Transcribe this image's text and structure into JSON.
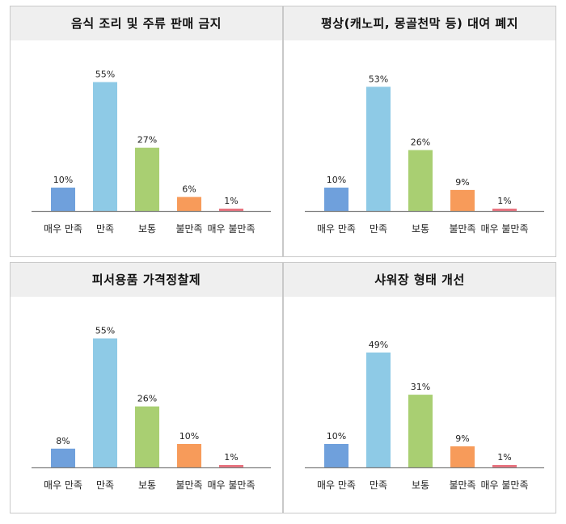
{
  "colors": [
    "#6fa0dc",
    "#8ecae6",
    "#a9cf72",
    "#f79b5a",
    "#e8737f"
  ],
  "chart_data": [
    {
      "type": "bar",
      "title": "음식 조리 및 주류 판매 금지",
      "categories": [
        "매우 만족",
        "만족",
        "보통",
        "불만족",
        "매우 불만족"
      ],
      "values": [
        10,
        55,
        27,
        6,
        1
      ],
      "value_labels": [
        "10%",
        "55%",
        "27%",
        "6%",
        "1%"
      ],
      "ylim": [
        0,
        60
      ]
    },
    {
      "type": "bar",
      "title": "평상(캐노피, 몽골천막 등) 대여 폐지",
      "categories": [
        "매우 만족",
        "만족",
        "보통",
        "불만족",
        "매우 불만족"
      ],
      "values": [
        10,
        53,
        26,
        9,
        1
      ],
      "value_labels": [
        "10%",
        "53%",
        "26%",
        "9%",
        "1%"
      ],
      "ylim": [
        0,
        60
      ]
    },
    {
      "type": "bar",
      "title": "피서용품 가격정찰제",
      "categories": [
        "매우 만족",
        "만족",
        "보통",
        "불만족",
        "매우 불만족"
      ],
      "values": [
        8,
        55,
        26,
        10,
        1
      ],
      "value_labels": [
        "8%",
        "55%",
        "26%",
        "10%",
        "1%"
      ],
      "ylim": [
        0,
        60
      ]
    },
    {
      "type": "bar",
      "title": "샤워장 형태 개선",
      "categories": [
        "매우 만족",
        "만족",
        "보통",
        "불만족",
        "매우 불만족"
      ],
      "values": [
        10,
        49,
        31,
        9,
        1
      ],
      "value_labels": [
        "10%",
        "49%",
        "31%",
        "9%",
        "1%"
      ],
      "ylim": [
        0,
        60
      ]
    }
  ]
}
